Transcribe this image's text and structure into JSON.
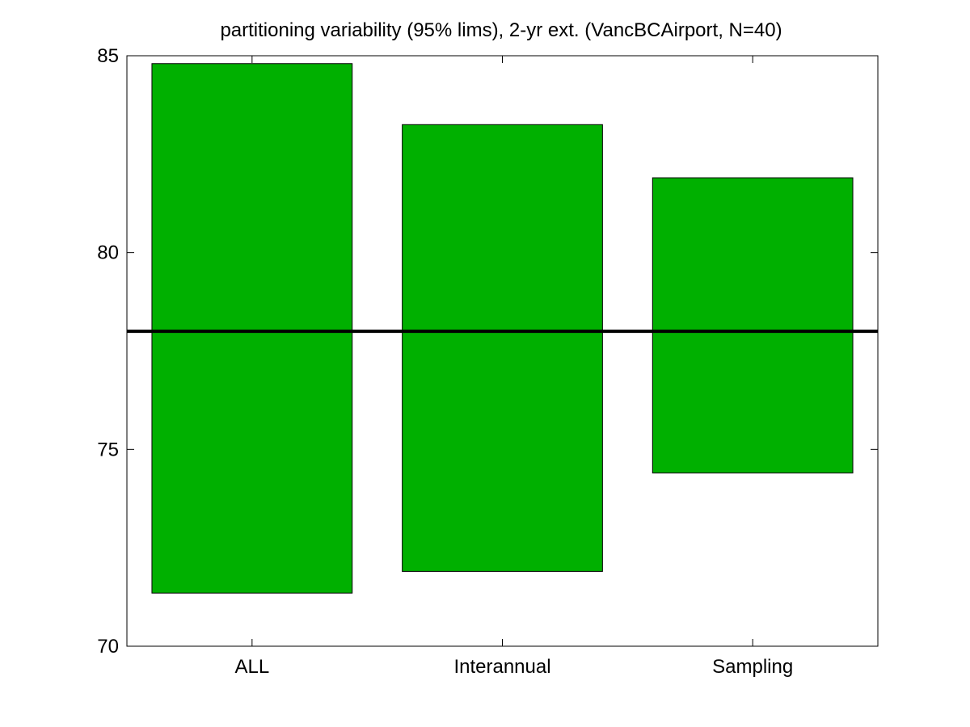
{
  "chart_data": {
    "type": "bar",
    "title": "partitioning variability (95% lims), 2-yr ext. (VancBCAirport, N=40)",
    "xlabel": "",
    "ylabel": "",
    "categories": [
      "ALL",
      "Interannual",
      "Sampling"
    ],
    "ranges": [
      {
        "category": "ALL",
        "low": 71.35,
        "high": 84.8
      },
      {
        "category": "Interannual",
        "low": 71.9,
        "high": 83.25
      },
      {
        "category": "Sampling",
        "low": 74.4,
        "high": 81.9
      }
    ],
    "reference_line": 78.0,
    "ylim": [
      70,
      85
    ],
    "yticks": [
      70,
      75,
      80,
      85
    ],
    "grid": false,
    "legend": "none",
    "colors": {
      "bar_fill": "#00b000",
      "bar_edge": "#000000",
      "reference_line": "#000000",
      "axes": "#000000",
      "background": "#ffffff"
    }
  }
}
